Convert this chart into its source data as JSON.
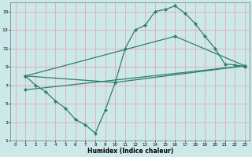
{
  "xlabel": "Humidex (Indice chaleur)",
  "bg_color": "#cce8e8",
  "line_color": "#2e7d6e",
  "grid_color": "#e8a0a0",
  "xlim": [
    -0.5,
    23.5
  ],
  "ylim": [
    1,
    16
  ],
  "xticks": [
    0,
    1,
    2,
    3,
    4,
    5,
    6,
    7,
    8,
    9,
    10,
    11,
    12,
    13,
    14,
    15,
    16,
    17,
    18,
    19,
    20,
    21,
    22,
    23
  ],
  "yticks": [
    1,
    3,
    5,
    7,
    9,
    11,
    13,
    15
  ],
  "line1_x": [
    1,
    2,
    3,
    4,
    5,
    6,
    7,
    8,
    9,
    10,
    11,
    12,
    13,
    14,
    15,
    16,
    17,
    18,
    19,
    20,
    21,
    22,
    23
  ],
  "line1_y": [
    8.0,
    7.0,
    6.3,
    5.3,
    4.5,
    3.3,
    2.7,
    1.8,
    4.3,
    7.3,
    11.0,
    13.0,
    13.5,
    15.0,
    15.2,
    15.6,
    14.8,
    13.7,
    12.3,
    11.0,
    9.3,
    9.2,
    9.0
  ],
  "line2_x": [
    1,
    10,
    23
  ],
  "line2_y": [
    8.0,
    7.3,
    9.1
  ],
  "line3_x": [
    1,
    16,
    23
  ],
  "line3_y": [
    8.0,
    12.3,
    9.1
  ],
  "line4_x": [
    1,
    23
  ],
  "line4_y": [
    6.5,
    9.1
  ]
}
